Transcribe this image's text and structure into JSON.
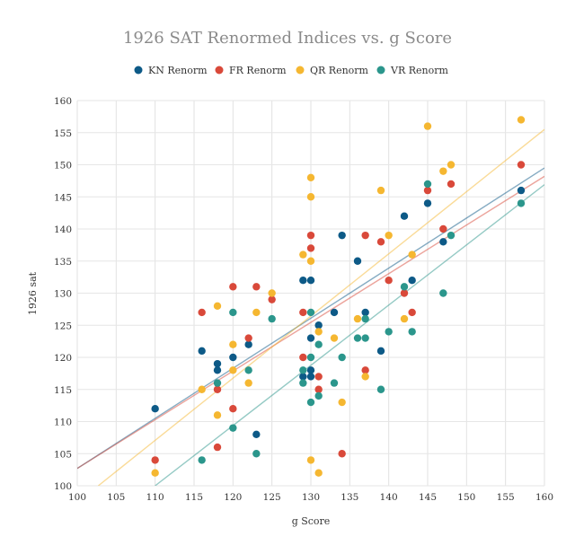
{
  "chart_data": {
    "type": "scatter",
    "title": "1926 SAT Renormed Indices vs. g Score",
    "xlabel": "g Score",
    "ylabel": "1926 sat",
    "xlim": [
      100,
      160
    ],
    "ylim": [
      100,
      160
    ],
    "xticks": [
      "100",
      "105",
      "110",
      "115",
      "120",
      "125",
      "130",
      "135",
      "140",
      "145",
      "150",
      "155",
      "160"
    ],
    "yticks": [
      "100",
      "105",
      "110",
      "115",
      "120",
      "125",
      "130",
      "135",
      "140",
      "145",
      "150",
      "155",
      "160"
    ],
    "grid": true,
    "legend_position": "top",
    "series": [
      {
        "name": "KN Renorm",
        "color": "#0d5a87",
        "trendline": [
          [
            100,
            102.7
          ],
          [
            160,
            149.5
          ]
        ],
        "points": [
          [
            110,
            112
          ],
          [
            116,
            121
          ],
          [
            118,
            119
          ],
          [
            118,
            118
          ],
          [
            120,
            120
          ],
          [
            122,
            122
          ],
          [
            123,
            108
          ],
          [
            129,
            132
          ],
          [
            129,
            117
          ],
          [
            130,
            132
          ],
          [
            130,
            123
          ],
          [
            130,
            118
          ],
          [
            130,
            117
          ],
          [
            131,
            125
          ],
          [
            133,
            127
          ],
          [
            134,
            139
          ],
          [
            136,
            135
          ],
          [
            137,
            127
          ],
          [
            139,
            121
          ],
          [
            142,
            142
          ],
          [
            143,
            132
          ],
          [
            145,
            144
          ],
          [
            147,
            138
          ],
          [
            157,
            146
          ]
        ]
      },
      {
        "name": "FR Renorm",
        "color": "#d9493a",
        "trendline": [
          [
            100,
            102.7
          ],
          [
            160,
            148.2
          ]
        ],
        "points": [
          [
            110,
            104
          ],
          [
            116,
            127
          ],
          [
            118,
            115
          ],
          [
            118,
            106
          ],
          [
            120,
            131
          ],
          [
            120,
            112
          ],
          [
            122,
            123
          ],
          [
            123,
            131
          ],
          [
            125,
            129
          ],
          [
            129,
            127
          ],
          [
            129,
            120
          ],
          [
            130,
            139
          ],
          [
            130,
            137
          ],
          [
            131,
            117
          ],
          [
            131,
            115
          ],
          [
            134,
            105
          ],
          [
            137,
            139
          ],
          [
            137,
            118
          ],
          [
            139,
            138
          ],
          [
            140,
            132
          ],
          [
            142,
            130
          ],
          [
            143,
            127
          ],
          [
            145,
            146
          ],
          [
            147,
            140
          ],
          [
            148,
            147
          ],
          [
            157,
            150
          ]
        ]
      },
      {
        "name": "QR Renorm",
        "color": "#f5b731",
        "trendline": [
          [
            102.7,
            100
          ],
          [
            160,
            155.5
          ]
        ],
        "points": [
          [
            110,
            102
          ],
          [
            116,
            115
          ],
          [
            118,
            128
          ],
          [
            118,
            111
          ],
          [
            120,
            122
          ],
          [
            120,
            118
          ],
          [
            122,
            116
          ],
          [
            123,
            127
          ],
          [
            125,
            130
          ],
          [
            129,
            136
          ],
          [
            130,
            148
          ],
          [
            130,
            145
          ],
          [
            130,
            135
          ],
          [
            130,
            104
          ],
          [
            131,
            124
          ],
          [
            131,
            102
          ],
          [
            133,
            123
          ],
          [
            134,
            113
          ],
          [
            136,
            126
          ],
          [
            137,
            117
          ],
          [
            139,
            146
          ],
          [
            140,
            139
          ],
          [
            142,
            126
          ],
          [
            143,
            136
          ],
          [
            145,
            156
          ],
          [
            147,
            149
          ],
          [
            148,
            150
          ],
          [
            157,
            157
          ]
        ]
      },
      {
        "name": "VR Renorm",
        "color": "#2b968c",
        "trendline": [
          [
            110,
            100
          ],
          [
            160,
            146.9
          ]
        ],
        "points": [
          [
            116,
            104
          ],
          [
            118,
            116
          ],
          [
            120,
            127
          ],
          [
            120,
            109
          ],
          [
            122,
            118
          ],
          [
            123,
            105
          ],
          [
            125,
            126
          ],
          [
            129,
            118
          ],
          [
            129,
            116
          ],
          [
            130,
            127
          ],
          [
            130,
            120
          ],
          [
            130,
            113
          ],
          [
            131,
            122
          ],
          [
            131,
            114
          ],
          [
            133,
            116
          ],
          [
            134,
            120
          ],
          [
            136,
            123
          ],
          [
            137,
            126
          ],
          [
            137,
            123
          ],
          [
            139,
            115
          ],
          [
            140,
            124
          ],
          [
            142,
            131
          ],
          [
            143,
            124
          ],
          [
            145,
            147
          ],
          [
            147,
            130
          ],
          [
            148,
            139
          ],
          [
            157,
            144
          ]
        ]
      }
    ]
  }
}
